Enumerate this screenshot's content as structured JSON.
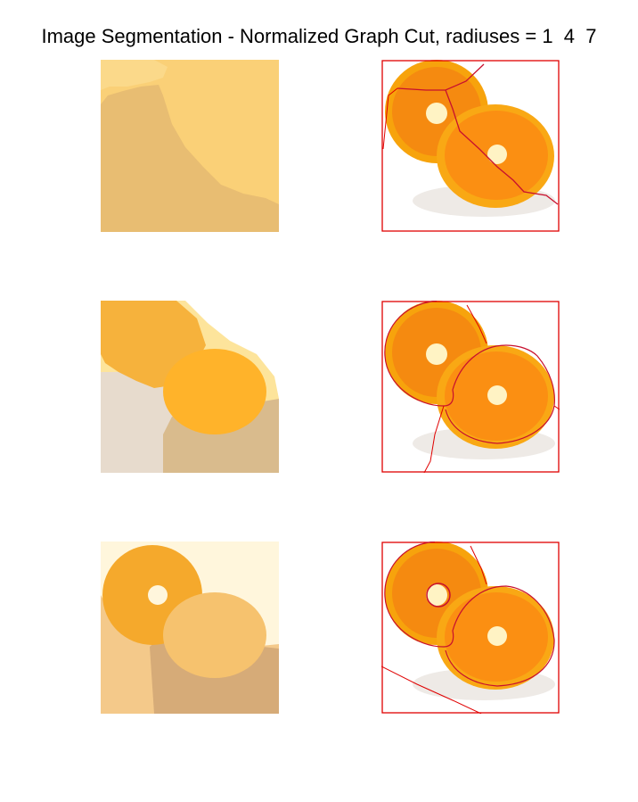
{
  "figure": {
    "title": "Image Segmentation - Normalized Graph Cut, radiuses = 1  4  7",
    "panels": [
      {
        "row": 1,
        "kind": "segment-label-map",
        "radius": "1",
        "colors": [
          "#fad077",
          "#e8bd72"
        ]
      },
      {
        "row": 1,
        "kind": "segmentation-overlay",
        "radius": "1",
        "boundary_color": "#e00000"
      },
      {
        "row": 2,
        "kind": "segment-label-map",
        "radius": "4",
        "colors": [
          "#f6b23c",
          "#ffb32a",
          "#e7dbcd",
          "#d9bb8d",
          "#fde49b"
        ]
      },
      {
        "row": 2,
        "kind": "segmentation-overlay",
        "radius": "4",
        "boundary_color": "#e00000"
      },
      {
        "row": 3,
        "kind": "segment-label-map",
        "radius": "7",
        "colors": [
          "#fff6dc",
          "#f5a92c",
          "#f6c26e",
          "#f4c98a",
          "#d6ab78"
        ]
      },
      {
        "row": 3,
        "kind": "segmentation-overlay",
        "radius": "7",
        "boundary_color": "#e00000"
      }
    ],
    "image_subject": "two-orange-halves-photo"
  }
}
